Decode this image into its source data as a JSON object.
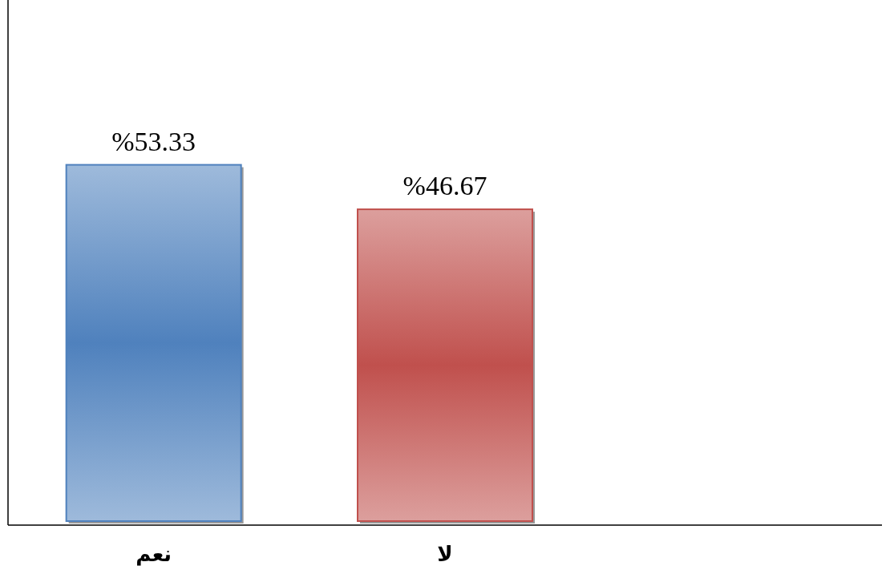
{
  "chart_data": {
    "type": "bar",
    "categories": [
      "نعم",
      "لا",
      null
    ],
    "values": [
      53.33,
      46.67,
      null
    ],
    "colors": [
      "#4f81bd",
      "#c0504d",
      null
    ],
    "value_labels": [
      "%53.33",
      "%46.67",
      null
    ],
    "ylim": [
      0,
      78
    ]
  }
}
